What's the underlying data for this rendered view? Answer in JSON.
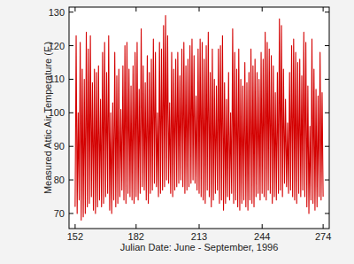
{
  "chart_data": {
    "type": "line",
    "x_label": "Julian Date: June - September, 1996",
    "y_label": "Measured Attic Air Temperature (F.)",
    "color": "#d40000",
    "grid": false,
    "xlim": [
      149,
      277
    ],
    "ylim": [
      65.5,
      131.5
    ],
    "xticks": [
      152,
      182,
      213,
      244,
      274
    ],
    "yticks": [
      70,
      80,
      90,
      100,
      110,
      120,
      130
    ],
    "x": [
      152,
      152.5,
      153,
      153.5,
      154,
      154.5,
      155,
      155.5,
      156,
      156.5,
      157,
      157.5,
      158,
      158.5,
      159,
      159.5,
      160,
      160.5,
      161,
      161.5,
      162,
      162.5,
      163,
      163.5,
      164,
      164.5,
      165,
      165.5,
      166,
      166.5,
      167,
      167.5,
      168,
      168.5,
      169,
      169.5,
      170,
      170.5,
      171,
      171.5,
      172,
      172.5,
      173,
      173.5,
      174,
      174.5,
      175,
      175.5,
      176,
      176.5,
      177,
      177.5,
      178,
      178.5,
      179,
      179.5,
      180,
      180.5,
      181,
      181.5,
      182,
      182.5,
      183,
      183.5,
      184,
      184.5,
      185,
      185.5,
      186,
      186.5,
      187,
      187.5,
      188,
      188.5,
      189,
      189.5,
      190,
      190.5,
      191,
      191.5,
      192,
      192.5,
      193,
      193.5,
      194,
      194.5,
      195,
      195.5,
      196,
      196.5,
      197,
      197.5,
      198,
      198.5,
      199,
      199.5,
      200,
      200.5,
      201,
      201.5,
      202,
      202.5,
      203,
      203.5,
      204,
      204.5,
      205,
      205.5,
      206,
      206.5,
      207,
      207.5,
      208,
      208.5,
      209,
      209.5,
      210,
      210.5,
      211,
      211.5,
      212,
      212.5,
      213,
      213.5,
      214,
      214.5,
      215,
      215.5,
      216,
      216.5,
      217,
      217.5,
      218,
      218.5,
      219,
      219.5,
      220,
      220.5,
      221,
      221.5,
      222,
      222.5,
      223,
      223.5,
      224,
      224.5,
      225,
      225.5,
      226,
      226.5,
      227,
      227.5,
      228,
      228.5,
      229,
      229.5,
      230,
      230.5,
      231,
      231.5,
      232,
      232.5,
      233,
      233.5,
      234,
      234.5,
      235,
      235.5,
      236,
      236.5,
      237,
      237.5,
      238,
      238.5,
      239,
      239.5,
      240,
      240.5,
      241,
      241.5,
      242,
      242.5,
      243,
      243.5,
      244,
      244.5,
      245,
      245.5,
      246,
      246.5,
      247,
      247.5,
      248,
      248.5,
      249,
      249.5,
      250,
      250.5,
      251,
      251.5,
      252,
      252.5,
      253,
      253.5,
      254,
      254.5,
      255,
      255.5,
      256,
      256.5,
      257,
      257.5,
      258,
      258.5,
      259,
      259.5,
      260,
      260.5,
      261,
      261.5,
      262,
      262.5,
      263,
      263.5,
      264,
      264.5,
      265,
      265.5,
      266,
      266.5,
      267,
      267.5,
      268,
      268.5,
      269,
      269.5,
      270,
      270.5,
      271,
      271.5,
      272,
      272.5,
      273,
      273.5,
      274
    ],
    "values": [
      72,
      123,
      70,
      100,
      74,
      121,
      68,
      113,
      69,
      110,
      70,
      124,
      72,
      119,
      73,
      123,
      75,
      109,
      71,
      113,
      70,
      112,
      72,
      114,
      74,
      104,
      72,
      118,
      73,
      121,
      75,
      112,
      76,
      123,
      71,
      100,
      70,
      103,
      74,
      118,
      72,
      111,
      73,
      113,
      75,
      101,
      77,
      114,
      74,
      120,
      73,
      121,
      76,
      113,
      75,
      108,
      74,
      114,
      73,
      118,
      75,
      121,
      74,
      107,
      76,
      125,
      78,
      114,
      77,
      109,
      74,
      117,
      73,
      112,
      76,
      116,
      77,
      122,
      79,
      118,
      78,
      100,
      75,
      121,
      76,
      119,
      77,
      126,
      78,
      129,
      80,
      123,
      79,
      103,
      76,
      118,
      75,
      113,
      77,
      116,
      78,
      118,
      79,
      111,
      80,
      119,
      78,
      121,
      76,
      114,
      77,
      116,
      78,
      120,
      79,
      122,
      80,
      117,
      79,
      105,
      77,
      119,
      76,
      122,
      75,
      121,
      74,
      116,
      73,
      120,
      77,
      124,
      75,
      112,
      72,
      119,
      74,
      110,
      76,
      108,
      77,
      119,
      73,
      120,
      74,
      123,
      71,
      109,
      73,
      104,
      75,
      112,
      74,
      100,
      76,
      125,
      73,
      118,
      74,
      113,
      72,
      119,
      71,
      110,
      73,
      108,
      74,
      115,
      72,
      109,
      71,
      112,
      74,
      119,
      73,
      114,
      72,
      116,
      75,
      112,
      76,
      110,
      74,
      118,
      76,
      116,
      75,
      124,
      74,
      121,
      77,
      119,
      76,
      117,
      73,
      114,
      75,
      106,
      74,
      112,
      76,
      128,
      77,
      126,
      75,
      113,
      79,
      104,
      78,
      97,
      76,
      112,
      77,
      120,
      75,
      122,
      74,
      118,
      73,
      115,
      76,
      116,
      75,
      111,
      77,
      124,
      75,
      121,
      72,
      108,
      70,
      96,
      74,
      122,
      73,
      113,
      71,
      107,
      72,
      105,
      75,
      118,
      74,
      106,
      75
    ]
  }
}
